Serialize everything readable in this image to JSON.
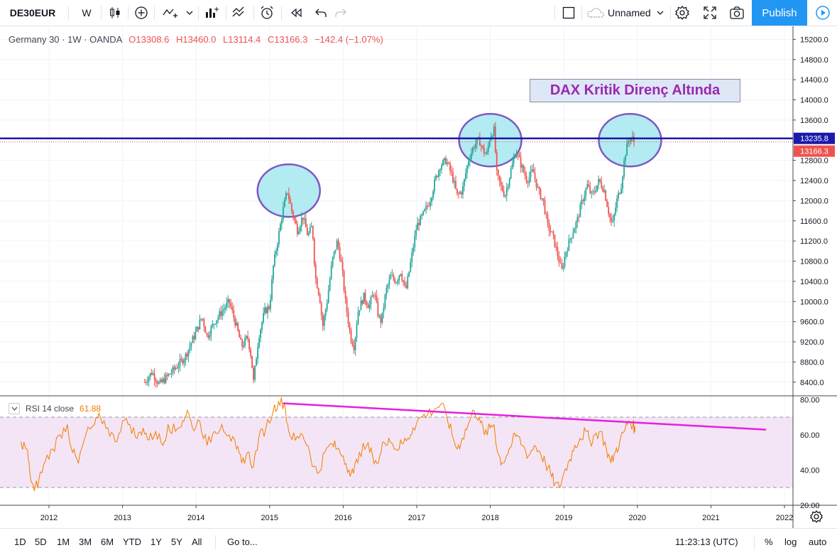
{
  "toolbar": {
    "symbol": "DE30EUR",
    "interval": "W",
    "layout_name": "Unnamed",
    "publish_label": "Publish"
  },
  "legend": {
    "title": "Germany 30 · 1W · OANDA",
    "open": "O13308.6",
    "high": "H13460.0",
    "low": "L13114.4",
    "close": "C13166.3",
    "change": "−142.4 (−1.07%)"
  },
  "annotation": {
    "text": "DAX Kritik Direnç Altında",
    "text_color": "#9c27b0",
    "circle_fill": "#b2ebf2",
    "circle_stroke": "#7e57c2"
  },
  "price_axis": {
    "ticks": [
      "15200.0",
      "14800.0",
      "14400.0",
      "14000.0",
      "13600.0",
      "12800.0",
      "12400.0",
      "12000.0",
      "11600.0",
      "11200.0",
      "10800.0",
      "10400.0",
      "10000.0",
      "9600.0",
      "9200.0",
      "8800.0",
      "8400.0"
    ],
    "resistance_label": "13235.8",
    "last_price_label": "13166.3",
    "resistance_color": "#1a1aab",
    "last_price_color": "#ef5350"
  },
  "rsi": {
    "label": "RSI 14 close",
    "value": "61.88",
    "ticks": [
      "80.00",
      "60.00",
      "40.00",
      "20.00"
    ],
    "line_color": "#f57c00",
    "band_color": "#f3e5f5",
    "trendline_color": "#e91ee0"
  },
  "time_axis": {
    "labels": [
      "2012",
      "2013",
      "2014",
      "2015",
      "2016",
      "2017",
      "2018",
      "2019",
      "2020",
      "2021",
      "2022"
    ]
  },
  "bottom_bar": {
    "ranges": [
      "1D",
      "5D",
      "1M",
      "3M",
      "6M",
      "YTD",
      "1Y",
      "5Y",
      "All"
    ],
    "goto": "Go to...",
    "time": "11:23:13 (UTC)",
    "percent": "%",
    "log": "log",
    "auto": "auto"
  },
  "chart_data": {
    "type": "candlestick",
    "title": "Germany 30 · 1W · OANDA",
    "ylim": [
      8300,
      15400
    ],
    "x_range": [
      2011.6,
      2022.15
    ],
    "up_color": "#26a69a",
    "down_color": "#ef5350",
    "resistance_level": 13235.8,
    "last_close": 13166.3,
    "price_path": [
      [
        2013.3,
        8400
      ],
      [
        2013.4,
        8600
      ],
      [
        2013.5,
        8350
      ],
      [
        2013.6,
        8500
      ],
      [
        2013.7,
        8650
      ],
      [
        2013.85,
        8900
      ],
      [
        2014.0,
        9400
      ],
      [
        2014.08,
        9700
      ],
      [
        2014.15,
        9300
      ],
      [
        2014.25,
        9600
      ],
      [
        2014.35,
        9800
      ],
      [
        2014.45,
        10000
      ],
      [
        2014.55,
        9500
      ],
      [
        2014.62,
        9100
      ],
      [
        2014.7,
        9300
      ],
      [
        2014.75,
        8900
      ],
      [
        2014.78,
        8400
      ],
      [
        2014.85,
        9300
      ],
      [
        2014.93,
        9800
      ],
      [
        2015.0,
        9900
      ],
      [
        2015.05,
        10700
      ],
      [
        2015.12,
        11300
      ],
      [
        2015.18,
        11800
      ],
      [
        2015.24,
        12200
      ],
      [
        2015.3,
        11800
      ],
      [
        2015.38,
        11400
      ],
      [
        2015.45,
        11700
      ],
      [
        2015.52,
        11300
      ],
      [
        2015.58,
        11500
      ],
      [
        2015.62,
        10500
      ],
      [
        2015.68,
        10100
      ],
      [
        2015.72,
        9500
      ],
      [
        2015.78,
        10000
      ],
      [
        2015.85,
        10800
      ],
      [
        2015.92,
        11200
      ],
      [
        2015.98,
        10700
      ],
      [
        2016.03,
        10000
      ],
      [
        2016.1,
        9300
      ],
      [
        2016.15,
        9100
      ],
      [
        2016.2,
        9800
      ],
      [
        2016.28,
        10100
      ],
      [
        2016.35,
        9900
      ],
      [
        2016.42,
        10200
      ],
      [
        2016.48,
        9700
      ],
      [
        2016.52,
        9600
      ],
      [
        2016.58,
        10200
      ],
      [
        2016.65,
        10500
      ],
      [
        2016.72,
        10400
      ],
      [
        2016.78,
        10600
      ],
      [
        2016.85,
        10200
      ],
      [
        2016.92,
        10800
      ],
      [
        2017.0,
        11500
      ],
      [
        2017.08,
        11700
      ],
      [
        2017.18,
        12000
      ],
      [
        2017.25,
        12400
      ],
      [
        2017.32,
        12700
      ],
      [
        2017.4,
        12800
      ],
      [
        2017.48,
        12500
      ],
      [
        2017.55,
        12100
      ],
      [
        2017.62,
        12200
      ],
      [
        2017.7,
        12800
      ],
      [
        2017.78,
        13100
      ],
      [
        2017.85,
        13200
      ],
      [
        2017.9,
        13000
      ],
      [
        2017.95,
        12900
      ],
      [
        2018.0,
        13300
      ],
      [
        2018.05,
        13400
      ],
      [
        2018.09,
        12500
      ],
      [
        2018.14,
        12300
      ],
      [
        2018.2,
        12100
      ],
      [
        2018.28,
        12600
      ],
      [
        2018.35,
        13000
      ],
      [
        2018.42,
        12700
      ],
      [
        2018.5,
        12400
      ],
      [
        2018.58,
        12600
      ],
      [
        2018.65,
        12200
      ],
      [
        2018.72,
        12000
      ],
      [
        2018.78,
        11500
      ],
      [
        2018.85,
        11300
      ],
      [
        2018.92,
        10900
      ],
      [
        2018.97,
        10600
      ],
      [
        2019.03,
        11000
      ],
      [
        2019.1,
        11300
      ],
      [
        2019.18,
        11600
      ],
      [
        2019.25,
        12000
      ],
      [
        2019.32,
        12300
      ],
      [
        2019.38,
        12100
      ],
      [
        2019.42,
        12200
      ],
      [
        2019.48,
        12400
      ],
      [
        2019.55,
        12200
      ],
      [
        2019.62,
        11700
      ],
      [
        2019.66,
        11500
      ],
      [
        2019.72,
        12000
      ],
      [
        2019.78,
        12300
      ],
      [
        2019.83,
        12900
      ],
      [
        2019.88,
        13200
      ],
      [
        2019.92,
        13260
      ],
      [
        2019.96,
        13166.3
      ]
    ],
    "rsi_path": [
      [
        2011.62,
        56
      ],
      [
        2011.7,
        52
      ],
      [
        2011.74,
        38
      ],
      [
        2011.8,
        28
      ],
      [
        2011.86,
        34
      ],
      [
        2011.95,
        45
      ],
      [
        2012.05,
        52
      ],
      [
        2012.15,
        60
      ],
      [
        2012.25,
        66
      ],
      [
        2012.32,
        50
      ],
      [
        2012.4,
        44
      ],
      [
        2012.5,
        60
      ],
      [
        2012.62,
        66
      ],
      [
        2012.7,
        70
      ],
      [
        2012.8,
        64
      ],
      [
        2012.9,
        56
      ],
      [
        2013.0,
        68
      ],
      [
        2013.1,
        66
      ],
      [
        2013.2,
        58
      ],
      [
        2013.28,
        64
      ],
      [
        2013.36,
        57
      ],
      [
        2013.45,
        62
      ],
      [
        2013.55,
        54
      ],
      [
        2013.62,
        66
      ],
      [
        2013.72,
        62
      ],
      [
        2013.82,
        68
      ],
      [
        2013.88,
        74
      ],
      [
        2013.95,
        64
      ],
      [
        2014.05,
        68
      ],
      [
        2014.15,
        54
      ],
      [
        2014.25,
        62
      ],
      [
        2014.35,
        66
      ],
      [
        2014.45,
        60
      ],
      [
        2014.55,
        52
      ],
      [
        2014.62,
        44
      ],
      [
        2014.7,
        50
      ],
      [
        2014.78,
        42
      ],
      [
        2014.85,
        58
      ],
      [
        2014.95,
        64
      ],
      [
        2015.05,
        74
      ],
      [
        2015.12,
        79
      ],
      [
        2015.2,
        78
      ],
      [
        2015.26,
        62
      ],
      [
        2015.35,
        57
      ],
      [
        2015.45,
        60
      ],
      [
        2015.52,
        54
      ],
      [
        2015.6,
        42
      ],
      [
        2015.66,
        38
      ],
      [
        2015.75,
        50
      ],
      [
        2015.85,
        55
      ],
      [
        2015.92,
        52
      ],
      [
        2016.0,
        48
      ],
      [
        2016.08,
        40
      ],
      [
        2016.14,
        38
      ],
      [
        2016.22,
        50
      ],
      [
        2016.32,
        54
      ],
      [
        2016.4,
        48
      ],
      [
        2016.48,
        44
      ],
      [
        2016.55,
        56
      ],
      [
        2016.62,
        58
      ],
      [
        2016.72,
        52
      ],
      [
        2016.8,
        55
      ],
      [
        2016.88,
        58
      ],
      [
        2016.95,
        64
      ],
      [
        2017.05,
        70
      ],
      [
        2017.15,
        72
      ],
      [
        2017.25,
        75
      ],
      [
        2017.32,
        77
      ],
      [
        2017.4,
        72
      ],
      [
        2017.48,
        60
      ],
      [
        2017.55,
        52
      ],
      [
        2017.62,
        58
      ],
      [
        2017.7,
        66
      ],
      [
        2017.78,
        74
      ],
      [
        2017.85,
        70
      ],
      [
        2017.92,
        60
      ],
      [
        2018.0,
        64
      ],
      [
        2018.05,
        66
      ],
      [
        2018.1,
        50
      ],
      [
        2018.16,
        44
      ],
      [
        2018.22,
        48
      ],
      [
        2018.3,
        56
      ],
      [
        2018.36,
        60
      ],
      [
        2018.44,
        54
      ],
      [
        2018.52,
        48
      ],
      [
        2018.6,
        54
      ],
      [
        2018.68,
        50
      ],
      [
        2018.75,
        44
      ],
      [
        2018.82,
        38
      ],
      [
        2018.88,
        32
      ],
      [
        2018.94,
        30
      ],
      [
        2019.0,
        38
      ],
      [
        2019.08,
        46
      ],
      [
        2019.15,
        54
      ],
      [
        2019.22,
        58
      ],
      [
        2019.3,
        62
      ],
      [
        2019.36,
        56
      ],
      [
        2019.42,
        60
      ],
      [
        2019.5,
        62
      ],
      [
        2019.58,
        52
      ],
      [
        2019.64,
        44
      ],
      [
        2019.7,
        50
      ],
      [
        2019.76,
        56
      ],
      [
        2019.82,
        62
      ],
      [
        2019.88,
        68
      ],
      [
        2019.94,
        66
      ],
      [
        2019.97,
        61.88
      ]
    ],
    "rsi_trendline": [
      [
        2015.18,
        78
      ],
      [
        2021.75,
        63
      ]
    ],
    "rsi_bands": [
      70,
      30
    ],
    "highlight_zones": [
      {
        "x": 2015.26,
        "y": 12200
      },
      {
        "x": 2018.0,
        "y": 13200
      },
      {
        "x": 2019.9,
        "y": 13200
      }
    ]
  }
}
